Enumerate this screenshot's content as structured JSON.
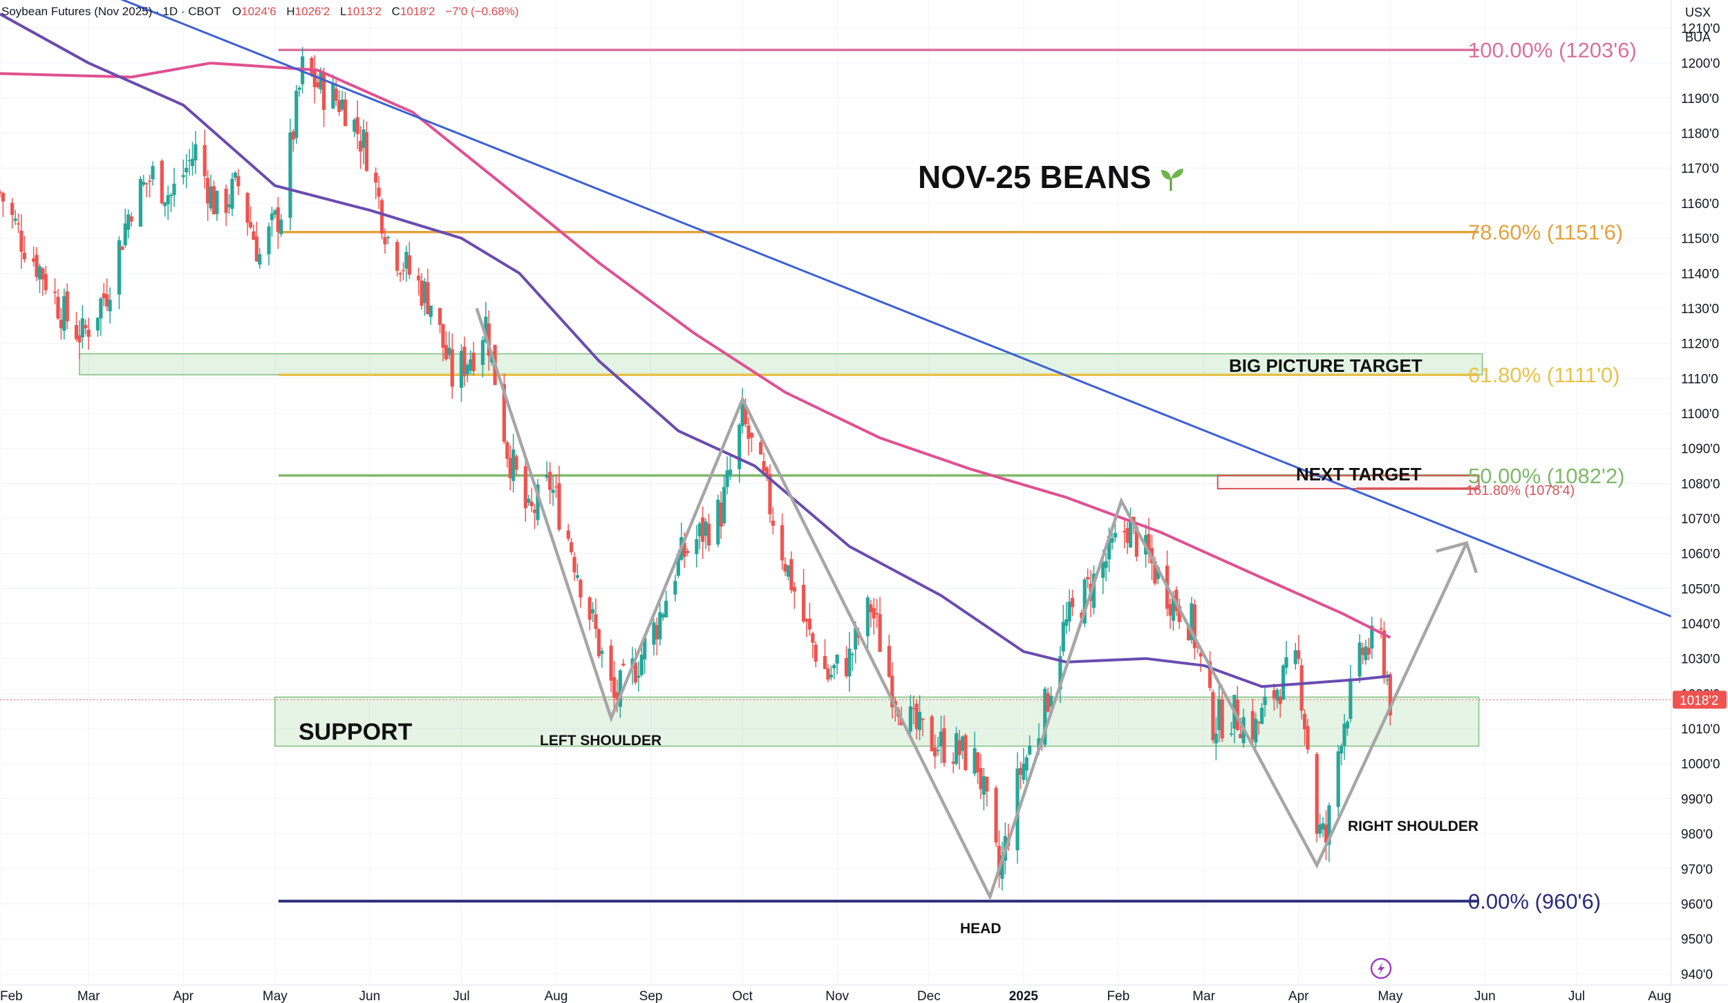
{
  "header": {
    "symbol": "Soybean Futures (Nov 2025) · 1D · CBOT",
    "open_label": "O",
    "open": "1024'6",
    "high_label": "H",
    "high": "1026'2",
    "low_label": "L",
    "low": "1013'2",
    "close_label": "C",
    "close": "1018'2",
    "change": "−7'0 (−0.68%)"
  },
  "scale_buttons": {
    "currency": "USX",
    "unit": "BUA"
  },
  "chart_data": {
    "type": "candlestick",
    "title": "NOV-25 BEANS",
    "title_icon": "seedling-icon",
    "y_axis": {
      "range": [
        937,
        1218
      ],
      "ticks": [
        940,
        950,
        960,
        970,
        980,
        990,
        1000,
        1010,
        1020,
        1030,
        1040,
        1050,
        1060,
        1070,
        1080,
        1090,
        1100,
        1110,
        1120,
        1130,
        1140,
        1150,
        1160,
        1170,
        1180,
        1190,
        1200,
        1210
      ],
      "tick_labels": [
        "940'0",
        "950'0",
        "960'0",
        "970'0",
        "980'0",
        "990'0",
        "1000'0",
        "1010'0",
        "1020'0",
        "1030'0",
        "1040'0",
        "1050'0",
        "1060'0",
        "1070'0",
        "1080'0",
        "1090'0",
        "1100'0",
        "1110'0",
        "1120'0",
        "1130'0",
        "1140'0",
        "1150'0",
        "1160'0",
        "1170'0",
        "1180'0",
        "1190'0",
        "1200'0",
        "1210'0"
      ],
      "last_price": 1018.25,
      "last_price_label": "1018'2"
    },
    "x_axis": {
      "start": "2024-02-01",
      "end": "2025-08-01",
      "ticks": [
        {
          "date": "2024-02-01",
          "label": "Feb"
        },
        {
          "date": "2024-03-01",
          "label": "Mar"
        },
        {
          "date": "2024-04-01",
          "label": "Apr"
        },
        {
          "date": "2024-05-01",
          "label": "May"
        },
        {
          "date": "2024-06-01",
          "label": "Jun"
        },
        {
          "date": "2024-07-01",
          "label": "Jul"
        },
        {
          "date": "2024-08-01",
          "label": "Aug"
        },
        {
          "date": "2024-09-01",
          "label": "Sep"
        },
        {
          "date": "2024-10-01",
          "label": "Oct"
        },
        {
          "date": "2024-11-01",
          "label": "Nov"
        },
        {
          "date": "2024-12-01",
          "label": "Dec"
        },
        {
          "date": "2025-01-01",
          "label": "2025"
        },
        {
          "date": "2025-02-01",
          "label": "Feb"
        },
        {
          "date": "2025-03-01",
          "label": "Mar"
        },
        {
          "date": "2025-04-01",
          "label": "Apr"
        },
        {
          "date": "2025-05-01",
          "label": "May"
        },
        {
          "date": "2025-06-01",
          "label": "Jun"
        },
        {
          "date": "2025-07-01",
          "label": "Jul"
        },
        {
          "date": "2025-08-01",
          "label": "Aug"
        }
      ]
    },
    "price_path": [
      [
        "2024-02-01",
        1163
      ],
      [
        "2024-02-08",
        1150
      ],
      [
        "2024-02-15",
        1140
      ],
      [
        "2024-02-22",
        1128
      ],
      [
        "2024-02-28",
        1122
      ],
      [
        "2024-03-07",
        1135
      ],
      [
        "2024-03-15",
        1160
      ],
      [
        "2024-03-22",
        1168
      ],
      [
        "2024-03-28",
        1162
      ],
      [
        "2024-04-05",
        1175
      ],
      [
        "2024-04-12",
        1158
      ],
      [
        "2024-04-19",
        1165
      ],
      [
        "2024-04-26",
        1145
      ],
      [
        "2024-05-03",
        1158
      ],
      [
        "2024-05-10",
        1198
      ],
      [
        "2024-05-17",
        1192
      ],
      [
        "2024-05-24",
        1188
      ],
      [
        "2024-05-31",
        1175
      ],
      [
        "2024-06-07",
        1150
      ],
      [
        "2024-06-14",
        1140
      ],
      [
        "2024-06-21",
        1132
      ],
      [
        "2024-06-28",
        1110
      ],
      [
        "2024-07-05",
        1118
      ],
      [
        "2024-07-09",
        1126
      ],
      [
        "2024-07-16",
        1090
      ],
      [
        "2024-07-23",
        1070
      ],
      [
        "2024-07-30",
        1080
      ],
      [
        "2024-08-06",
        1062
      ],
      [
        "2024-08-13",
        1040
      ],
      [
        "2024-08-20",
        1018
      ],
      [
        "2024-08-27",
        1028
      ],
      [
        "2024-09-03",
        1040
      ],
      [
        "2024-09-10",
        1058
      ],
      [
        "2024-09-17",
        1065
      ],
      [
        "2024-09-24",
        1072
      ],
      [
        "2024-10-01",
        1098
      ],
      [
        "2024-10-08",
        1080
      ],
      [
        "2024-10-15",
        1058
      ],
      [
        "2024-10-22",
        1038
      ],
      [
        "2024-10-29",
        1025
      ],
      [
        "2024-11-05",
        1030
      ],
      [
        "2024-11-12",
        1045
      ],
      [
        "2024-11-19",
        1022
      ],
      [
        "2024-11-26",
        1010
      ],
      [
        "2024-12-03",
        1006
      ],
      [
        "2024-12-10",
        1004
      ],
      [
        "2024-12-17",
        1000
      ],
      [
        "2024-12-24",
        968
      ],
      [
        "2024-12-31",
        998
      ],
      [
        "2025-01-07",
        1012
      ],
      [
        "2025-01-14",
        1038
      ],
      [
        "2025-01-21",
        1048
      ],
      [
        "2025-01-28",
        1058
      ],
      [
        "2025-02-04",
        1068
      ],
      [
        "2025-02-11",
        1058
      ],
      [
        "2025-02-18",
        1048
      ],
      [
        "2025-02-25",
        1040
      ],
      [
        "2025-03-04",
        1012
      ],
      [
        "2025-03-11",
        1014
      ],
      [
        "2025-03-18",
        1010
      ],
      [
        "2025-03-25",
        1022
      ],
      [
        "2025-04-01",
        1028
      ],
      [
        "2025-04-07",
        982
      ],
      [
        "2025-04-10",
        978
      ],
      [
        "2025-04-15",
        1010
      ],
      [
        "2025-04-22",
        1032
      ],
      [
        "2025-04-28",
        1035
      ],
      [
        "2025-05-01",
        1018
      ]
    ],
    "moving_averages": [
      {
        "name": "MA 200",
        "color": "#e0508f",
        "points": [
          [
            "2024-02-01",
            1197
          ],
          [
            "2024-03-15",
            1196
          ],
          [
            "2024-04-10",
            1200
          ],
          [
            "2024-05-15",
            1198
          ],
          [
            "2024-06-15",
            1186
          ],
          [
            "2024-07-15",
            1165
          ],
          [
            "2024-08-15",
            1143
          ],
          [
            "2024-09-15",
            1123
          ],
          [
            "2024-10-15",
            1106
          ],
          [
            "2024-11-15",
            1093
          ],
          [
            "2024-12-15",
            1084
          ],
          [
            "2025-01-15",
            1076
          ],
          [
            "2025-02-15",
            1066
          ],
          [
            "2025-03-15",
            1055
          ],
          [
            "2025-04-15",
            1043
          ],
          [
            "2025-05-01",
            1036
          ]
        ]
      },
      {
        "name": "MA 100",
        "color": "#6a4bb0",
        "points": [
          [
            "2024-02-01",
            1214
          ],
          [
            "2024-03-01",
            1200
          ],
          [
            "2024-04-01",
            1188
          ],
          [
            "2024-05-01",
            1165
          ],
          [
            "2024-06-01",
            1158
          ],
          [
            "2024-07-01",
            1150
          ],
          [
            "2024-07-20",
            1140
          ],
          [
            "2024-08-15",
            1115
          ],
          [
            "2024-09-10",
            1095
          ],
          [
            "2024-10-05",
            1085
          ],
          [
            "2024-11-05",
            1062
          ],
          [
            "2024-12-05",
            1048
          ],
          [
            "2025-01-01",
            1032
          ],
          [
            "2025-01-15",
            1029
          ],
          [
            "2025-02-10",
            1030
          ],
          [
            "2025-03-01",
            1028
          ],
          [
            "2025-03-20",
            1022
          ],
          [
            "2025-04-20",
            1024
          ],
          [
            "2025-05-01",
            1025
          ]
        ]
      }
    ],
    "trendline": {
      "color": "#3b5fd6",
      "points": [
        [
          "2024-02-01",
          1232
        ],
        [
          "2025-08-01",
          1042
        ]
      ]
    },
    "fib_levels": [
      {
        "ratio": "100.00%",
        "label": "100.00% (1203'6)",
        "value": 1203.75,
        "color": "#d9729b"
      },
      {
        "ratio": "78.60%",
        "label": "78.60% (1151'6)",
        "value": 1151.75,
        "color": "#e3a23d"
      },
      {
        "ratio": "61.80%",
        "label": "61.80% (1111'0)",
        "value": 1111.0,
        "color": "#e8c24a"
      },
      {
        "ratio": "50.00%",
        "label": "50.00% (1082'2)",
        "value": 1082.25,
        "color": "#7fb86a"
      },
      {
        "ratio": "0.00%",
        "label": "0.00% (960'6)",
        "value": 960.75,
        "color": "#2a2a7a"
      }
    ],
    "extension": {
      "label": "161.80% (1078'4)",
      "value": 1078.5,
      "color": "#d9535a"
    },
    "zones": [
      {
        "name": "big-picture-zone",
        "range": [
          1111,
          1117
        ]
      },
      {
        "name": "support-zone",
        "range": [
          1005,
          1019
        ]
      }
    ],
    "pattern": {
      "name": "head and shoulders",
      "points": [
        [
          "2024-07-06",
          1130
        ],
        [
          "2024-08-19",
          1013
        ],
        [
          "2024-10-01",
          1104
        ],
        [
          "2024-12-21",
          962
        ],
        [
          "2025-02-02",
          1075
        ],
        [
          "2025-04-07",
          971
        ],
        [
          "2025-05-26",
          1063
        ]
      ]
    },
    "annotations": {
      "support": "SUPPORT",
      "left_shoulder": "LEFT SHOULDER",
      "head": "HEAD",
      "right_shoulder": "RIGHT SHOULDER",
      "next_target": "NEXT TARGET",
      "big_picture_target": "BIG PICTURE TARGET"
    }
  }
}
